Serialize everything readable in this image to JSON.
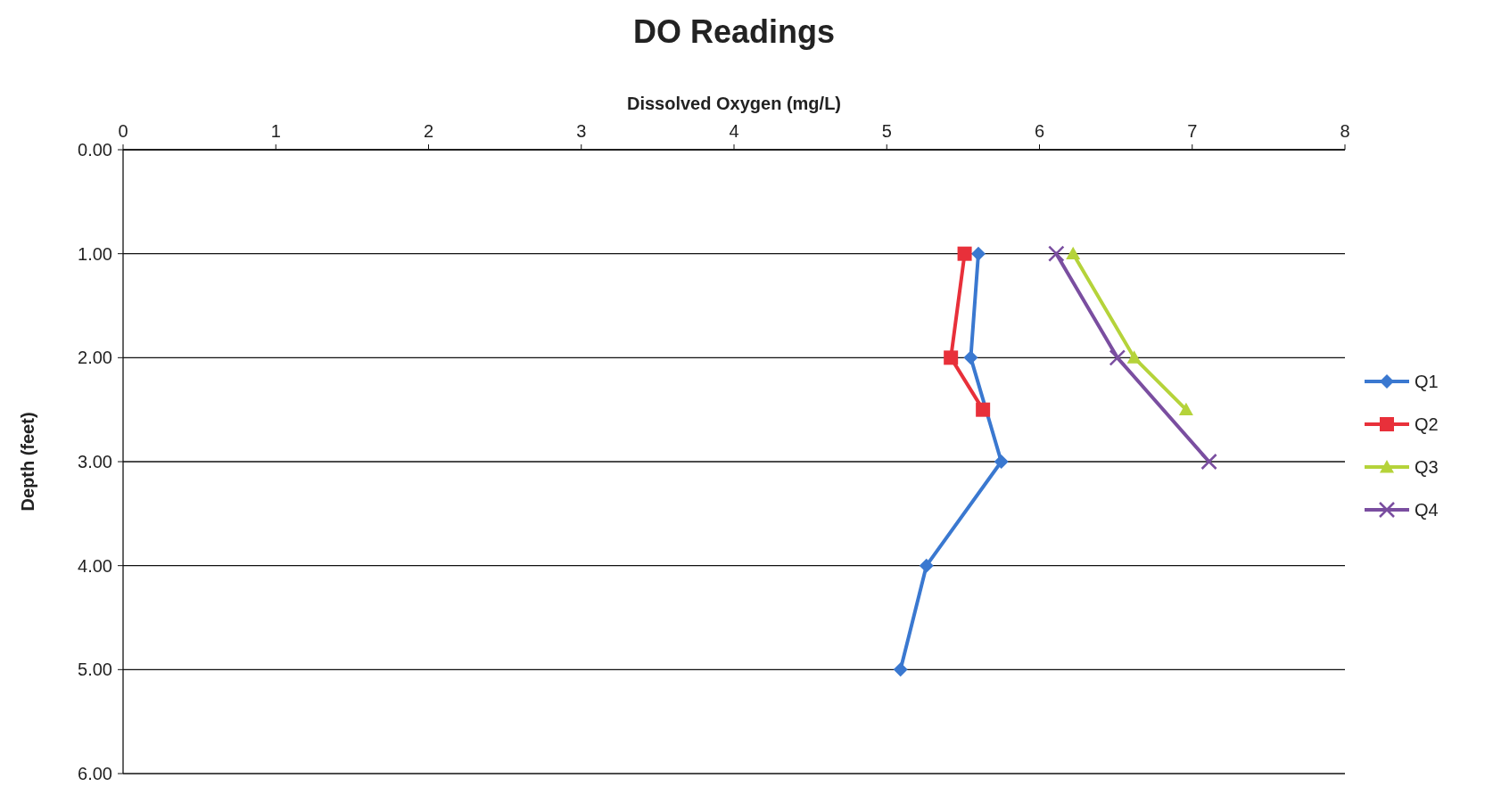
{
  "chart_data": {
    "type": "line",
    "title": "DO Readings",
    "xlabel": "Dissolved Oxygen (mg/L)",
    "ylabel": "Depth (feet)",
    "xlim": [
      0,
      8
    ],
    "xticks": [
      0,
      1,
      2,
      3,
      4,
      5,
      6,
      7,
      8
    ],
    "ylim": [
      6,
      0
    ],
    "yticks": [
      {
        "value": 0,
        "label": "0.00"
      },
      {
        "value": 1,
        "label": "1.00"
      },
      {
        "value": 2,
        "label": "2.00"
      },
      {
        "value": 3,
        "label": "3.00"
      },
      {
        "value": 4,
        "label": "4.00"
      },
      {
        "value": 5,
        "label": "5.00"
      },
      {
        "value": 6,
        "label": "6.00"
      }
    ],
    "grid": "y",
    "legend": "right",
    "series": [
      {
        "name": "Q1",
        "color": "#3a78d0",
        "marker": "diamond",
        "x": [
          5.6,
          5.55,
          5.75,
          5.26,
          5.09
        ],
        "values": [
          1,
          2,
          3,
          4,
          5
        ]
      },
      {
        "name": "Q2",
        "color": "#e8303a",
        "marker": "square",
        "x": [
          5.51,
          5.42,
          5.63
        ],
        "values": [
          1,
          2,
          2.5
        ]
      },
      {
        "name": "Q3",
        "color": "#b5d33a",
        "marker": "triangle",
        "x": [
          6.22,
          6.62,
          6.96
        ],
        "values": [
          1,
          2,
          2.5
        ]
      },
      {
        "name": "Q4",
        "color": "#7a4ea0",
        "marker": "cross",
        "x": [
          6.11,
          6.51,
          7.11
        ],
        "values": [
          1,
          2,
          3
        ]
      }
    ]
  }
}
